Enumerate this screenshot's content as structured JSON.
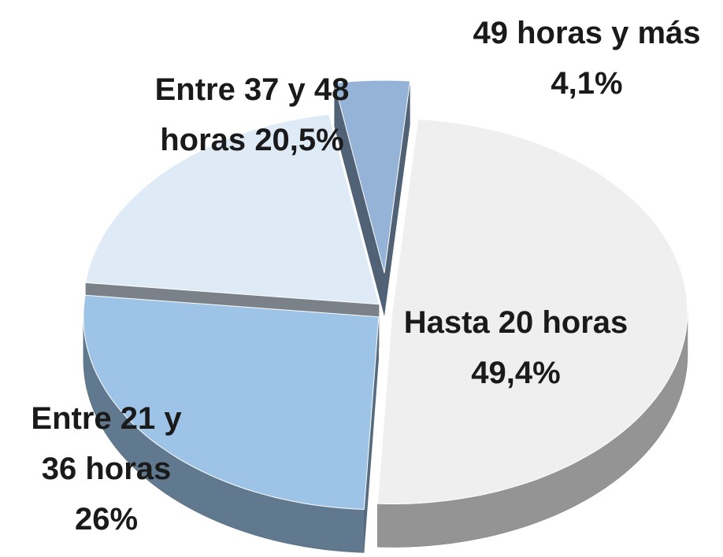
{
  "chart_data": {
    "type": "pie",
    "categories": [
      "Hasta 20 horas",
      "Entre 21 y 36 horas",
      "Entre 37 y 48 horas",
      "49 horas y más"
    ],
    "values": [
      49.4,
      26,
      20.5,
      4.1
    ],
    "value_labels": [
      "49,4%",
      "26%",
      "20,5%",
      "4,1%"
    ],
    "colors": [
      "#efeff0",
      "#9dc3e6",
      "#deebf7",
      "#95b3d7"
    ]
  }
}
